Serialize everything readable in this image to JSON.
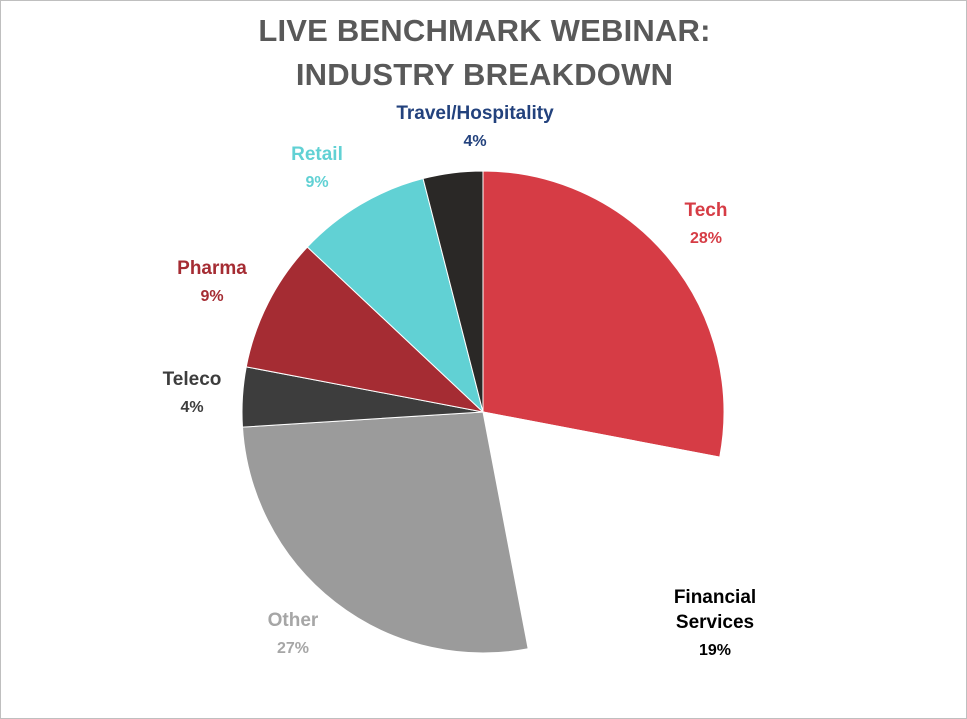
{
  "chart_data": {
    "type": "pie",
    "title_lines": [
      "LIVE BENCHMARK WEBINAR:",
      "INDUSTRY BREAKDOWN"
    ],
    "start_angle_deg": 0,
    "direction": "clockwise",
    "slices": [
      {
        "label_lines": [
          "Tech"
        ],
        "value": 28,
        "value_label": "28%",
        "color": "#d63c45",
        "label_color": "#d63c45"
      },
      {
        "label_lines": [
          "Financial",
          "Services"
        ],
        "value": 19,
        "value_label": "19%",
        "color": "#ffffff",
        "label_color": "#000000"
      },
      {
        "label_lines": [
          "Other"
        ],
        "value": 27,
        "value_label": "27%",
        "color": "#9b9b9b",
        "label_color": "#a6a6a6"
      },
      {
        "label_lines": [
          "Teleco"
        ],
        "value": 4,
        "value_label": "4%",
        "color": "#3d3d3d",
        "label_color": "#3d3d3d"
      },
      {
        "label_lines": [
          "Pharma"
        ],
        "value": 9,
        "value_label": "9%",
        "color": "#a52c33",
        "label_color": "#a52c33"
      },
      {
        "label_lines": [
          "Retail"
        ],
        "value": 9,
        "value_label": "9%",
        "color": "#61d1d4",
        "label_color": "#61d1d4"
      },
      {
        "label_lines": [
          "Travel/Hospitality"
        ],
        "value": 4,
        "value_label": "4%",
        "color": "#2a2826",
        "label_color": "#23427d"
      }
    ]
  }
}
